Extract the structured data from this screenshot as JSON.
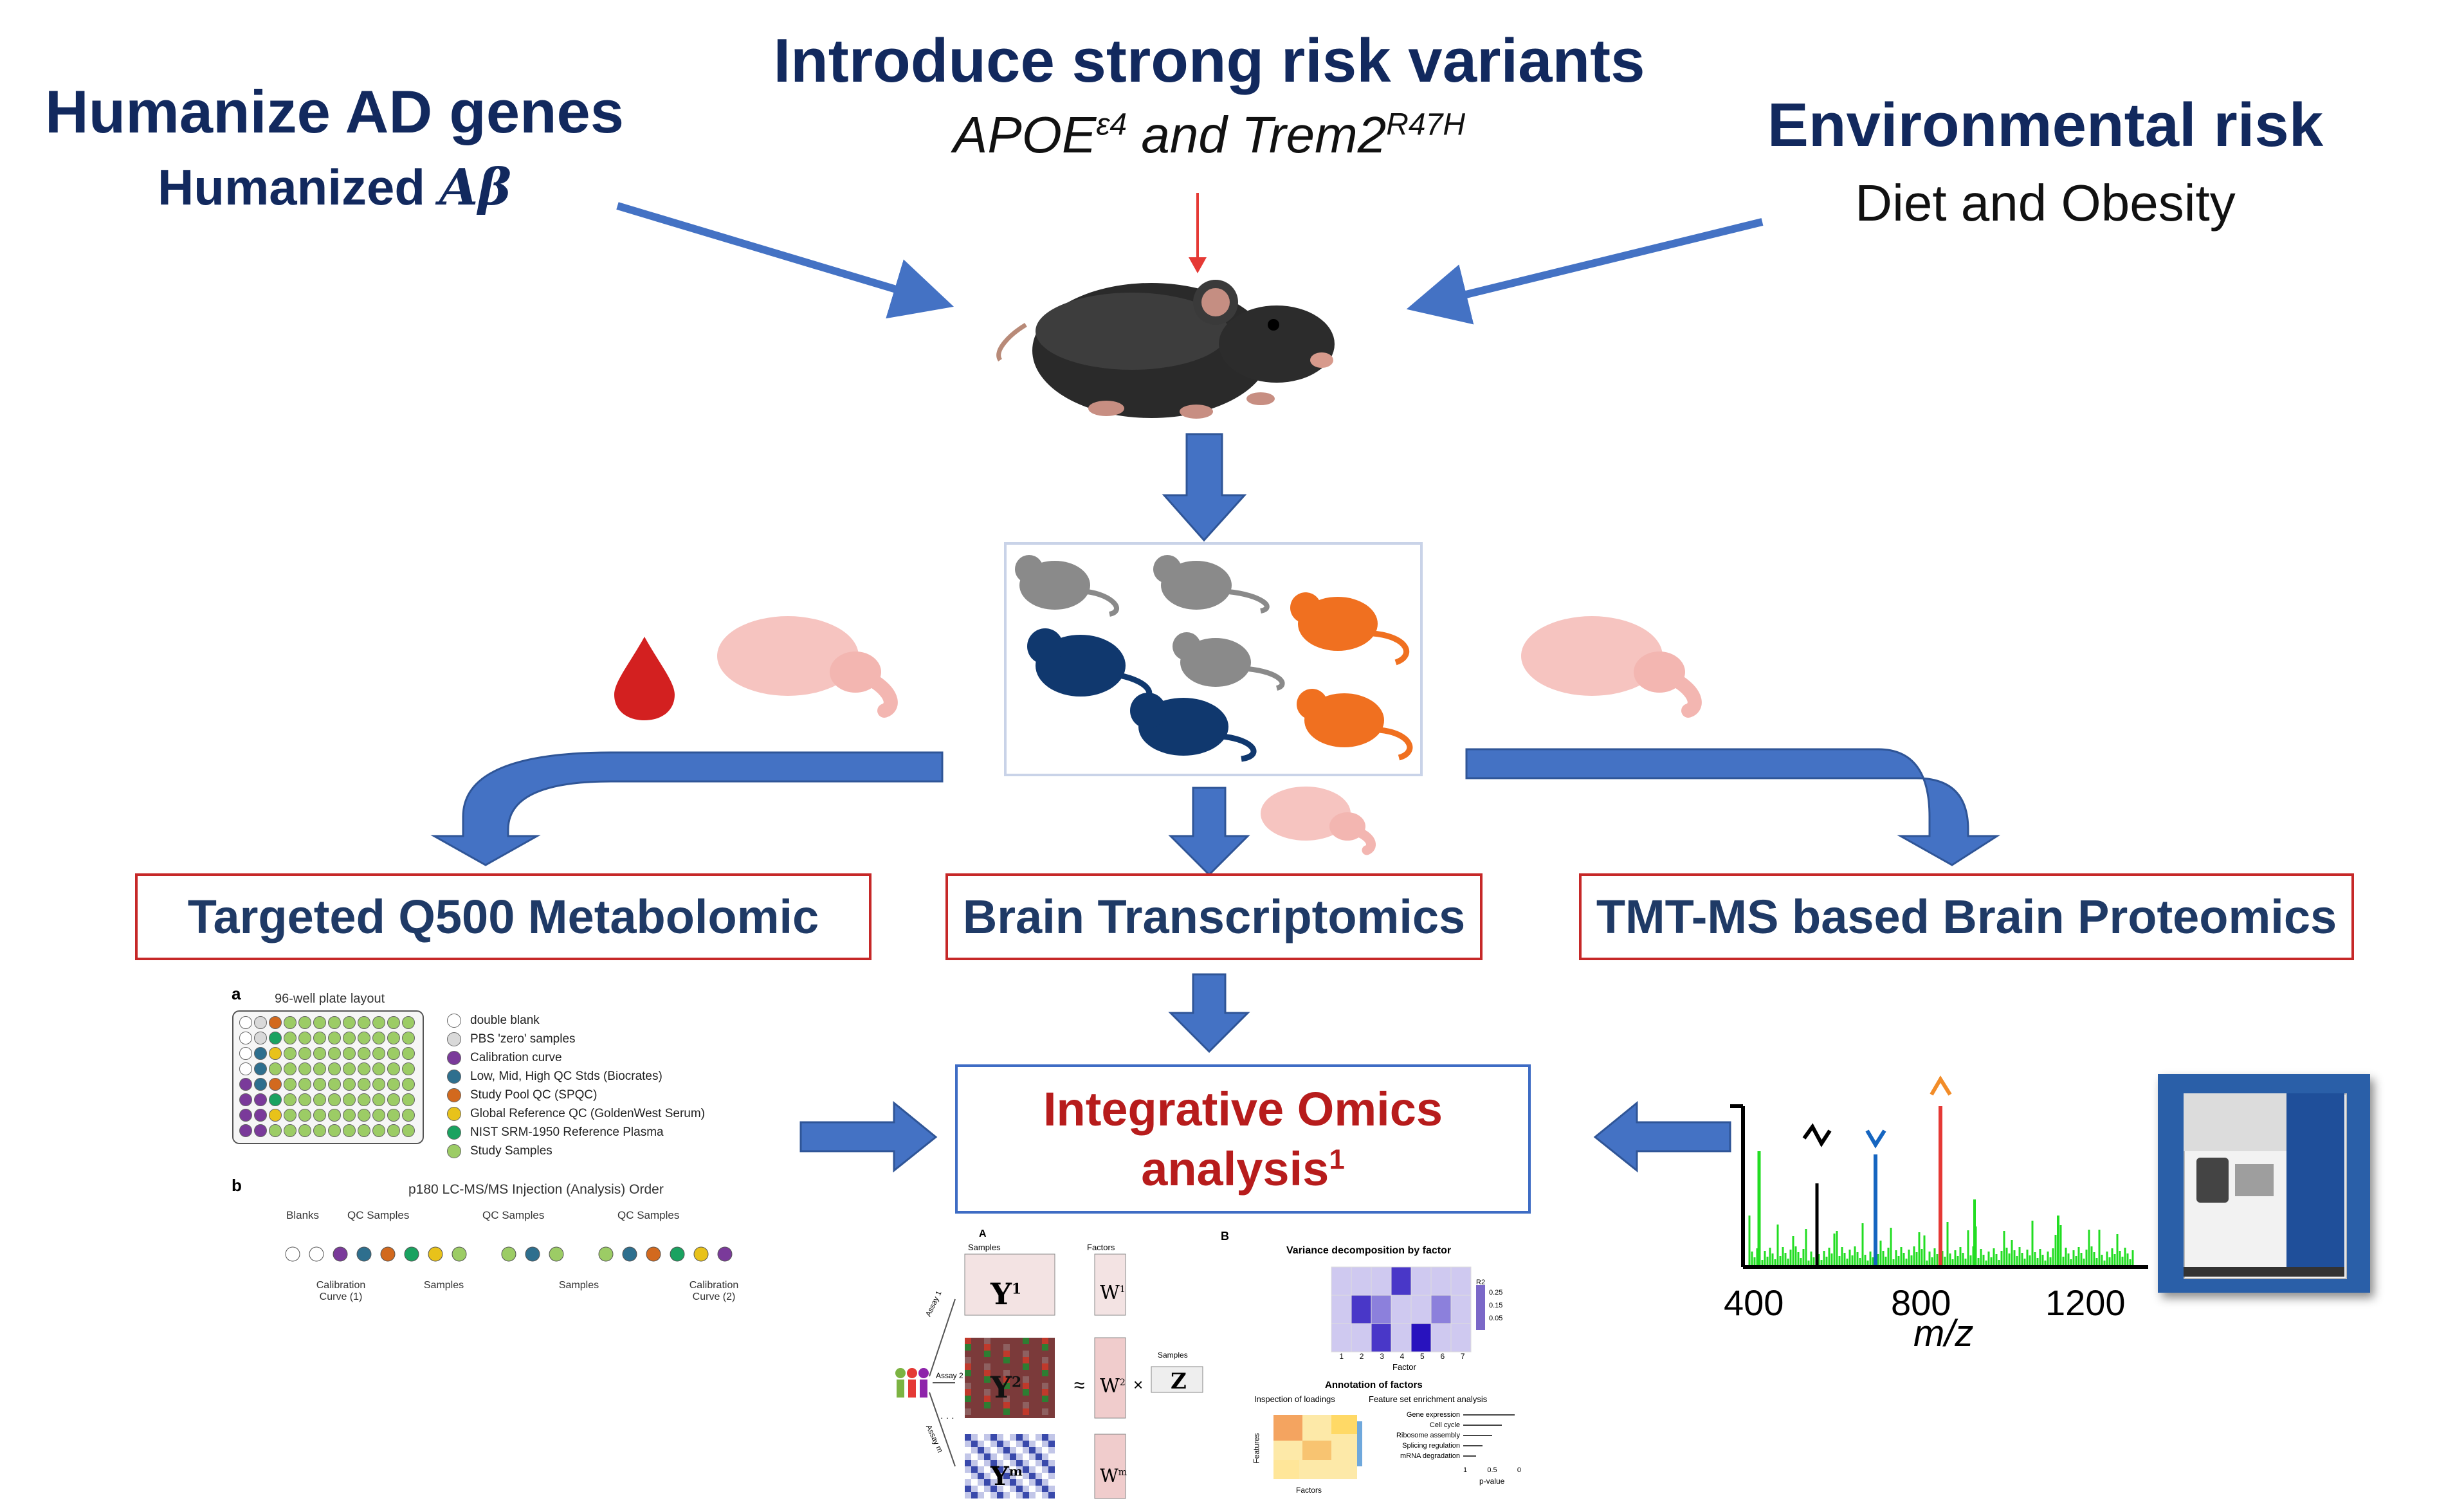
{
  "top": {
    "left": {
      "title": "Humanize AD genes",
      "subtitle_prefix": "Humanized ",
      "subtitle_symbol": "Aβ"
    },
    "center": {
      "title": "Introduce strong risk variants",
      "apoe": "APOE",
      "apoe_sup": "ε4",
      "and": " and ",
      "trem2": "Trem2",
      "trem2_sup": "R47H"
    },
    "right": {
      "title": "Environmental risk",
      "subtitle": "Diet and Obesity"
    }
  },
  "boxes": {
    "metabolomic": "Targeted Q500 Metabolomic",
    "transcriptomics": "Brain Transcriptomics",
    "proteomics": "TMT-MS based Brain Proteomics",
    "integrative_line1": "Integrative Omics",
    "integrative_line2": "analysis",
    "integrative_sup": "1"
  },
  "plate": {
    "panel_a": "a",
    "layout_title": "96-well plate layout",
    "legend": [
      {
        "label": "double blank",
        "color": "#ffffff"
      },
      {
        "label": "PBS 'zero' samples",
        "color": "#d9d9d9"
      },
      {
        "label": "Calibration curve",
        "color": "#7a3a9a"
      },
      {
        "label": "Low, Mid, High QC Stds (Biocrates)",
        "color": "#2e6f8e"
      },
      {
        "label": "Study Pool QC (SPQC)",
        "color": "#d2691e"
      },
      {
        "label": "Global Reference QC (GoldenWest Serum)",
        "color": "#e8c21a"
      },
      {
        "label": "NIST SRM-1950 Reference Plasma",
        "color": "#1aa260"
      },
      {
        "label": "Study Samples",
        "color": "#9ccc65"
      }
    ],
    "panel_b": "b",
    "order_title": "p180 LC-MS/MS Injection (Analysis) Order",
    "group_labels": [
      "Blanks",
      "QC Samples",
      "QC Samples",
      "QC Samples"
    ],
    "bottom_labels": [
      "Calibration\nCurve (1)",
      "Samples",
      "Samples",
      "Calibration\nCurve (2)"
    ]
  },
  "mofa": {
    "panel_a": "A",
    "panel_b": "B",
    "samples": "Samples",
    "factors": "Factors",
    "features": "Features",
    "y_labels": [
      "Y",
      "Y",
      "Y"
    ],
    "y_sups": [
      "1",
      "2",
      "m"
    ],
    "w_labels": [
      "W",
      "W",
      "W"
    ],
    "w_sups": [
      "1",
      "2",
      "m"
    ],
    "z_label": "Z",
    "approx": "≈",
    "times": "×",
    "assays": [
      "Assay 1",
      "Assay 2",
      "Assay m"
    ],
    "dots": "· · ·",
    "var_title": "Variance decomposition by factor",
    "factor_axis": "Factor",
    "factor_ticks": [
      "1",
      "2",
      "3",
      "4",
      "5",
      "6",
      "7"
    ],
    "legend_title": "R2",
    "legend_ticks": [
      "0.25",
      "0.15",
      "0.05"
    ],
    "annot_title": "Annotation of factors",
    "inspect_title": "Inspection of loadings",
    "fsea_title": "Feature set enrichment analysis",
    "fsea_items": [
      "Gene expression",
      "Cell cycle",
      "Ribosome assembly",
      "Splicing regulation",
      "mRNA degradation"
    ],
    "fsea_axis": "p-value",
    "fsea_ticks": [
      "1",
      "0.5",
      "0"
    ],
    "loading_axis_x": "Factors",
    "loading_axis_y": "Features"
  },
  "spectrum": {
    "x_ticks": [
      "400",
      "800",
      "1200"
    ],
    "x_label": "m/z",
    "colors": {
      "green": "#22dd22",
      "blue": "#1565c0",
      "red": "#e53935",
      "orange": "#f28c28",
      "black": "#000000"
    }
  },
  "colors": {
    "arrow_blue": "#4472c4",
    "navy": "#12295e",
    "integrative_red": "#b71c1c",
    "mouse_gray": "#8a8a8a",
    "mouse_navy": "#10386e",
    "mouse_orange": "#f07020",
    "brain_pink": "#f6c4c0",
    "blood_red": "#d32020"
  }
}
